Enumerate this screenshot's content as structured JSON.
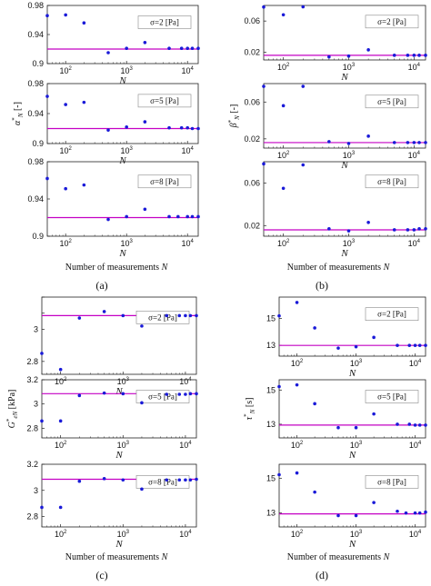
{
  "panel_labels": [
    "(a)",
    "(b)",
    "(c)",
    "(d)"
  ],
  "x_axis_title": "Number of measurements",
  "x_axis_title_var": "N",
  "colors": {
    "reference_line": "#c400c4",
    "points": "#1a1ad8",
    "axes": "#222222"
  },
  "chart_data": [
    {
      "type": "scatter",
      "panel": "a",
      "row": 0,
      "legend": "σ=2 [Pa]",
      "xlabel": "N",
      "ylabel": "",
      "xscale": "log",
      "xlim": [
        50,
        15000
      ],
      "ylim": [
        0.9,
        0.98
      ],
      "yticks": [
        0.9,
        0.94,
        0.98
      ],
      "ytick_labels": [
        "0.9",
        "0.94",
        "0.98"
      ],
      "ref": 0.92,
      "x": [
        50,
        100,
        200,
        500,
        1000,
        2000,
        5000,
        8000,
        10000,
        12000,
        15000
      ],
      "y": [
        0.966,
        0.967,
        0.956,
        0.915,
        0.921,
        0.929,
        0.921,
        0.921,
        0.921,
        0.921,
        0.921
      ]
    },
    {
      "type": "scatter",
      "panel": "a",
      "row": 1,
      "legend": "σ=5 [Pa]",
      "xlabel": "N",
      "ylabel": "α*_N [-]",
      "xscale": "log",
      "xlim": [
        50,
        15000
      ],
      "ylim": [
        0.9,
        0.98
      ],
      "yticks": [
        0.9,
        0.94,
        0.98
      ],
      "ytick_labels": [
        "0.9",
        "0.94",
        "0.98"
      ],
      "ref": 0.92,
      "x": [
        50,
        100,
        200,
        500,
        1000,
        2000,
        5000,
        8000,
        10000,
        12000,
        15000
      ],
      "y": [
        0.963,
        0.952,
        0.955,
        0.918,
        0.922,
        0.929,
        0.921,
        0.921,
        0.921,
        0.92,
        0.92
      ]
    },
    {
      "type": "scatter",
      "panel": "a",
      "row": 2,
      "legend": "σ=8 [Pa]",
      "xlabel": "N",
      "ylabel": "",
      "xscale": "log",
      "xlim": [
        50,
        15000
      ],
      "ylim": [
        0.9,
        0.98
      ],
      "yticks": [
        0.9,
        0.94,
        0.98
      ],
      "ytick_labels": [
        "0.9",
        "0.94",
        "0.98"
      ],
      "ref": 0.92,
      "x": [
        50,
        100,
        200,
        500,
        1000,
        2000,
        5000,
        7000,
        10000,
        12000,
        15000
      ],
      "y": [
        0.962,
        0.951,
        0.955,
        0.918,
        0.921,
        0.929,
        0.921,
        0.921,
        0.921,
        0.921,
        0.921
      ]
    },
    {
      "type": "scatter",
      "panel": "b",
      "row": 0,
      "legend": "σ=2 [Pa]",
      "xlabel": "N",
      "ylabel": "",
      "xscale": "log",
      "xlim": [
        50,
        15000
      ],
      "ylim": [
        0.01,
        0.08
      ],
      "yticks": [
        0.02,
        0.06
      ],
      "ytick_labels": [
        "0.02",
        "0.06"
      ],
      "ref": 0.016,
      "x": [
        50,
        100,
        200,
        500,
        1000,
        2000,
        5000,
        8000,
        10000,
        12000,
        15000
      ],
      "y": [
        0.078,
        0.068,
        0.079,
        0.014,
        0.015,
        0.023,
        0.016,
        0.016,
        0.016,
        0.016,
        0.016
      ]
    },
    {
      "type": "scatter",
      "panel": "b",
      "row": 1,
      "legend": "σ=5 [Pa]",
      "xlabel": "N",
      "ylabel": "β*_N [-]",
      "xscale": "log",
      "xlim": [
        50,
        15000
      ],
      "ylim": [
        0.01,
        0.08
      ],
      "yticks": [
        0.02,
        0.06
      ],
      "ytick_labels": [
        "0.02",
        "0.06"
      ],
      "ref": 0.016,
      "x": [
        50,
        100,
        200,
        500,
        1000,
        2000,
        5000,
        8000,
        10000,
        12000,
        15000
      ],
      "y": [
        0.077,
        0.056,
        0.077,
        0.017,
        0.015,
        0.023,
        0.016,
        0.016,
        0.016,
        0.016,
        0.016
      ]
    },
    {
      "type": "scatter",
      "panel": "b",
      "row": 2,
      "legend": "σ=8 [Pa]",
      "xlabel": "N",
      "ylabel": "",
      "xscale": "log",
      "xlim": [
        50,
        15000
      ],
      "ylim": [
        0.01,
        0.08
      ],
      "yticks": [
        0.02,
        0.06
      ],
      "ytick_labels": [
        "0.02",
        "0.06"
      ],
      "ref": 0.016,
      "x": [
        50,
        100,
        200,
        500,
        1000,
        2000,
        5000,
        8000,
        10000,
        12000,
        15000
      ],
      "y": [
        0.078,
        0.055,
        0.077,
        0.017,
        0.015,
        0.023,
        0.016,
        0.016,
        0.016,
        0.017,
        0.017
      ]
    },
    {
      "type": "scatter",
      "panel": "c",
      "row": 0,
      "legend": "σ=2 [Pa]",
      "xlabel": "N",
      "ylabel": "",
      "xscale": "log",
      "xlim": [
        50,
        15000
      ],
      "ylim": [
        2.72,
        3.2
      ],
      "yticks": [
        2.8,
        3.0,
        3.1,
        3.2
      ],
      "ytick_labels": [
        "2.8",
        "3",
        "",
        ""
      ],
      "ytick_labels_full": [
        "2.8",
        "3",
        "3.1",
        "3.2"
      ],
      "ref": 3.085,
      "x": [
        50,
        100,
        200,
        500,
        1000,
        2000,
        5000,
        8000,
        10000,
        12000,
        15000
      ],
      "y": [
        2.85,
        2.75,
        3.07,
        3.11,
        3.085,
        3.02,
        3.085,
        3.085,
        3.085,
        3.085,
        3.085
      ]
    },
    {
      "type": "scatter",
      "panel": "c",
      "row": 1,
      "legend": "σ=5 [Pa]",
      "xlabel": "N",
      "ylabel": "G*_eN [kPa]",
      "xscale": "log",
      "xlim": [
        50,
        15000
      ],
      "ylim": [
        2.72,
        3.2
      ],
      "yticks": [
        2.8,
        3.0,
        3.2
      ],
      "ytick_labels": [
        "2.8",
        "3",
        "3.2"
      ],
      "ref": 3.085,
      "x": [
        50,
        100,
        200,
        500,
        1000,
        2000,
        5000,
        8000,
        10000,
        12000,
        15000
      ],
      "y": [
        2.86,
        2.86,
        3.07,
        3.09,
        3.085,
        3.01,
        3.08,
        3.08,
        3.08,
        3.085,
        3.085
      ]
    },
    {
      "type": "scatter",
      "panel": "c",
      "row": 2,
      "legend": "σ=8 [Pa]",
      "xlabel": "N",
      "ylabel": "",
      "xscale": "log",
      "xlim": [
        50,
        15000
      ],
      "ylim": [
        2.72,
        3.2
      ],
      "yticks": [
        2.8,
        3.0,
        3.2
      ],
      "ytick_labels": [
        "2.8",
        "3",
        "3.2"
      ],
      "ref": 3.085,
      "x": [
        50,
        100,
        200,
        500,
        1000,
        2000,
        5000,
        8000,
        10000,
        12000,
        15000
      ],
      "y": [
        2.87,
        2.87,
        3.07,
        3.09,
        3.08,
        3.01,
        3.08,
        3.08,
        3.08,
        3.08,
        3.085
      ]
    },
    {
      "type": "scatter",
      "panel": "d",
      "row": 0,
      "legend": "σ=2 [Pa]",
      "xlabel": "N",
      "ylabel": "",
      "xscale": "log",
      "xlim": [
        50,
        15000
      ],
      "ylim": [
        12.2,
        16.6
      ],
      "yticks": [
        13,
        15
      ],
      "ytick_labels": [
        "13",
        "15"
      ],
      "ref": 13.0,
      "x": [
        50,
        100,
        200,
        500,
        1000,
        2000,
        5000,
        8000,
        10000,
        12000,
        15000
      ],
      "y": [
        15.2,
        16.2,
        14.3,
        12.8,
        12.9,
        13.6,
        13.0,
        13.0,
        13.0,
        13.0,
        13.0
      ]
    },
    {
      "type": "scatter",
      "panel": "d",
      "row": 1,
      "legend": "σ=5 [Pa]",
      "xlabel": "N",
      "ylabel": "τ*_N [s]",
      "xscale": "log",
      "xlim": [
        50,
        15000
      ],
      "ylim": [
        12.2,
        15.6
      ],
      "yticks": [
        13,
        15
      ],
      "ytick_labels": [
        "13",
        "15"
      ],
      "ref": 12.95,
      "x": [
        50,
        100,
        200,
        500,
        1000,
        2000,
        5000,
        8000,
        10000,
        12000,
        15000
      ],
      "y": [
        15.2,
        15.3,
        14.2,
        12.8,
        12.8,
        13.6,
        13.0,
        13.0,
        12.95,
        12.95,
        12.95
      ]
    },
    {
      "type": "scatter",
      "panel": "d",
      "row": 2,
      "legend": "σ=8 [Pa]",
      "xlabel": "N",
      "ylabel": "",
      "xscale": "log",
      "xlim": [
        50,
        15000
      ],
      "ylim": [
        12.2,
        15.8
      ],
      "yticks": [
        13,
        15
      ],
      "ytick_labels": [
        "13",
        "15"
      ],
      "ref": 12.95,
      "x": [
        50,
        100,
        200,
        500,
        1000,
        2000,
        5000,
        7000,
        10000,
        12000,
        15000
      ],
      "y": [
        15.2,
        15.3,
        14.2,
        12.85,
        12.85,
        13.6,
        13.1,
        13.0,
        13.0,
        13.0,
        13.05
      ]
    }
  ]
}
